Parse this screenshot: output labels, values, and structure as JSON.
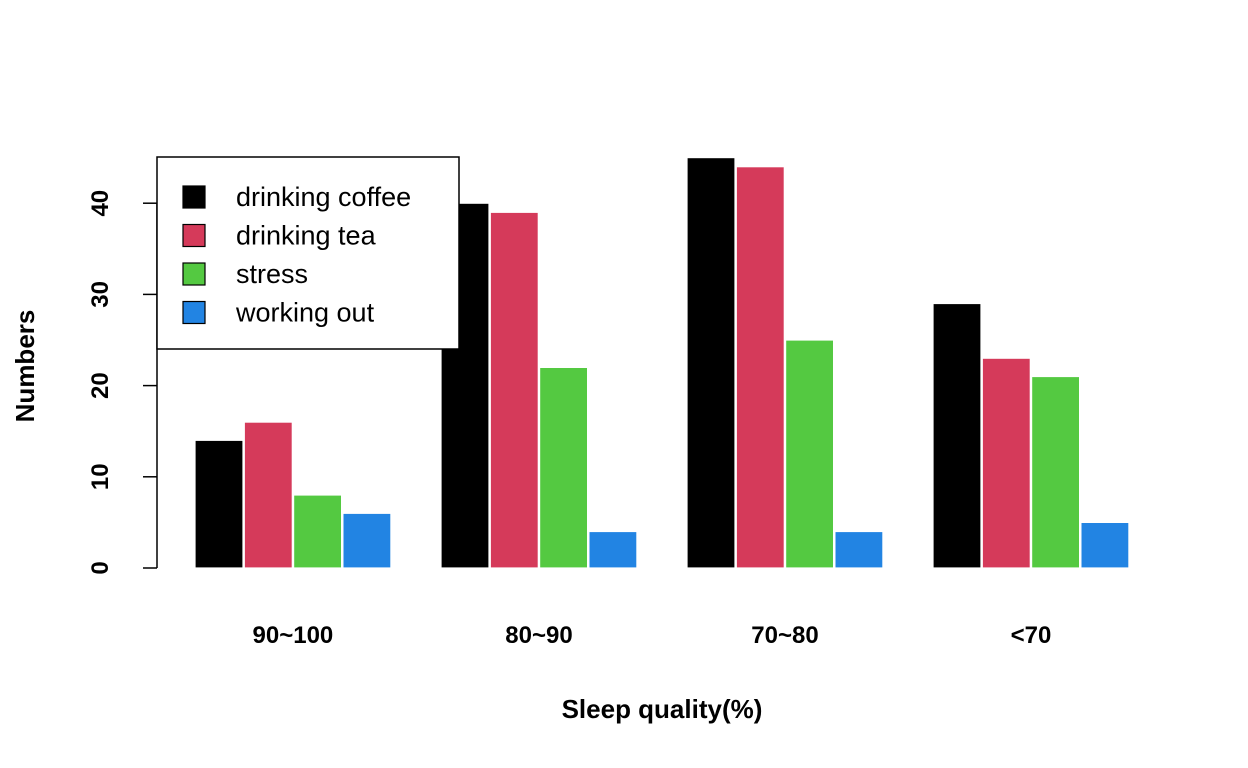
{
  "chart_data": {
    "type": "bar",
    "title": "",
    "xlabel": "Sleep quality(%)",
    "ylabel": "Numbers",
    "categories": [
      "90~100",
      "80~90",
      "70~80",
      "<70"
    ],
    "series": [
      {
        "name": "drinking coffee",
        "color": "#000000",
        "values": [
          14,
          40,
          45,
          29
        ]
      },
      {
        "name": "drinking tea",
        "color": "#D53A5A",
        "values": [
          16,
          39,
          44,
          23
        ]
      },
      {
        "name": "stress",
        "color": "#54C941",
        "values": [
          8,
          22,
          25,
          21
        ]
      },
      {
        "name": "working out",
        "color": "#2284E3",
        "values": [
          6,
          4,
          4,
          5
        ]
      }
    ],
    "yticks": [
      "0",
      "10",
      "20",
      "30",
      "40"
    ],
    "ylim": [
      0,
      45
    ],
    "grid": false,
    "legend_position": "top-left"
  }
}
